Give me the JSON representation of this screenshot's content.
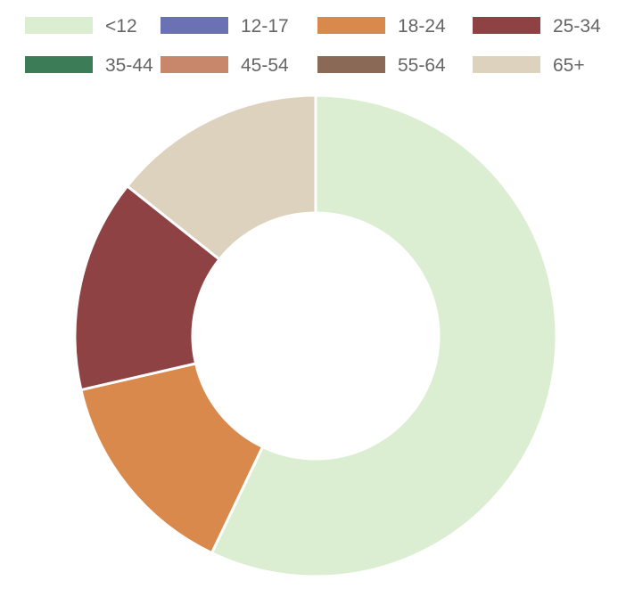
{
  "chart_data": {
    "type": "pie",
    "variant": "doughnut",
    "categories": [
      "<12",
      "12-17",
      "18-24",
      "25-34",
      "35-44",
      "45-54",
      "55-64",
      "65+"
    ],
    "values": [
      57.1,
      0,
      14.3,
      14.3,
      0,
      0,
      0,
      14.3
    ],
    "colors": [
      "#dbeed2",
      "#6a72b4",
      "#d8894b",
      "#8e4244",
      "#3c7c57",
      "#c8876a",
      "#8a6a56",
      "#dcd2be"
    ],
    "legend": {
      "position": "top",
      "columns": 4
    },
    "title": ""
  }
}
